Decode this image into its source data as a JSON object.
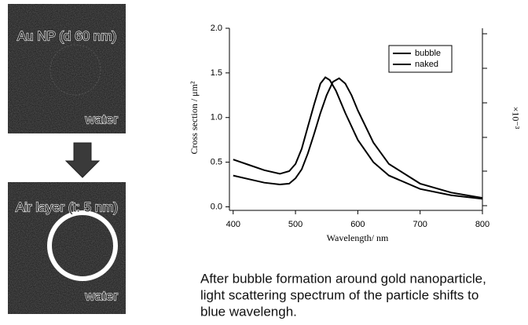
{
  "panels": [
    {
      "label": "Au NP (d 60 nm)",
      "medium": "water"
    },
    {
      "label": "Air layer (t: 5 nm)",
      "medium": "water"
    }
  ],
  "caption": [
    "After bubble formation around gold nanoparticle,",
    "light scattering spectrum of the particle shifts to",
    "blue wavelengh."
  ],
  "chart_data": {
    "type": "line",
    "x_label": "Wavelength/ nm",
    "y_label": "Cross section / μm²",
    "y2_label": "×10⁻³",
    "xlim": [
      394,
      800
    ],
    "ylim": [
      -0.04,
      2.0
    ],
    "xticks": [
      400,
      500,
      600,
      700,
      800
    ],
    "yticks": [
      {
        "value": 0,
        "label": "0.0"
      },
      {
        "value": 0.5,
        "label": "0.5"
      },
      {
        "value": 1,
        "label": "1.0"
      },
      {
        "value": 1.5,
        "label": "1.5"
      },
      {
        "value": 2,
        "label": "2.0"
      }
    ],
    "legend": "upper right",
    "series": [
      {
        "name": "bubble",
        "color": "#000000",
        "x": [
          400,
          425,
          450,
          475,
          490,
          500,
          510,
          520,
          530,
          540,
          548,
          555,
          565,
          580,
          600,
          625,
          650,
          700,
          750,
          800
        ],
        "values": [
          0.53,
          0.47,
          0.41,
          0.37,
          0.4,
          0.48,
          0.65,
          0.9,
          1.15,
          1.38,
          1.45,
          1.42,
          1.3,
          1.05,
          0.75,
          0.5,
          0.35,
          0.2,
          0.13,
          0.09
        ]
      },
      {
        "name": "naked",
        "color": "#000000",
        "x": [
          400,
          425,
          450,
          475,
          490,
          500,
          510,
          520,
          530,
          540,
          550,
          560,
          570,
          580,
          590,
          600,
          625,
          650,
          700,
          750,
          800
        ],
        "values": [
          0.35,
          0.31,
          0.27,
          0.25,
          0.26,
          0.32,
          0.42,
          0.6,
          0.82,
          1.05,
          1.25,
          1.4,
          1.44,
          1.38,
          1.25,
          1.08,
          0.72,
          0.48,
          0.26,
          0.16,
          0.1
        ]
      }
    ]
  }
}
